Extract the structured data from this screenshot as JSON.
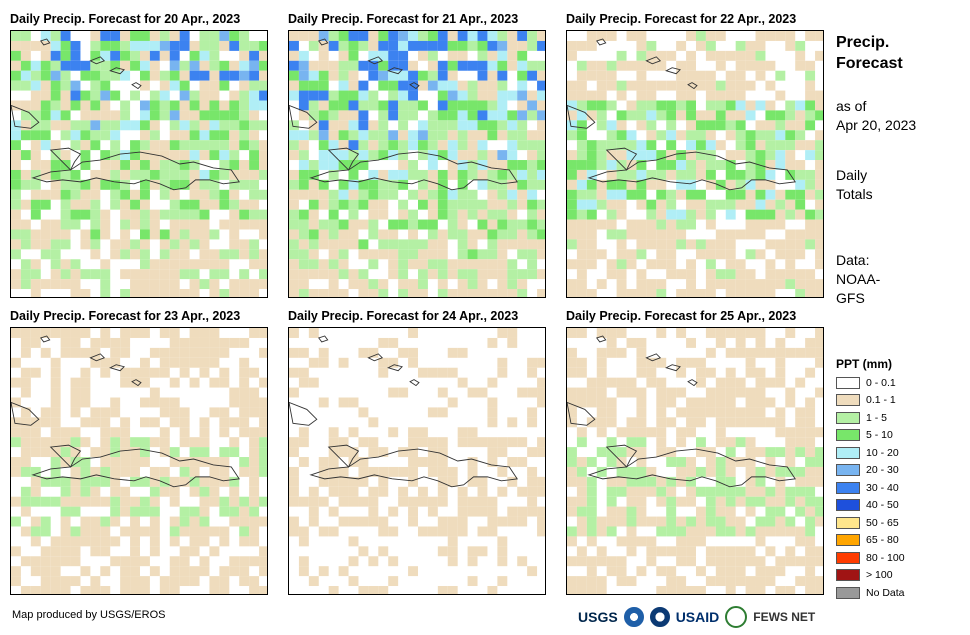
{
  "panels": [
    {
      "title": "Daily Precip. Forecast for 20 Apr., 2023",
      "seed": 20
    },
    {
      "title": "Daily Precip. Forecast for 21 Apr., 2023",
      "seed": 21
    },
    {
      "title": "Daily Precip. Forecast for 22 Apr., 2023",
      "seed": 22
    },
    {
      "title": "Daily Precip. Forecast for 23 Apr., 2023",
      "seed": 23
    },
    {
      "title": "Daily Precip. Forecast for 24 Apr., 2023",
      "seed": 24
    },
    {
      "title": "Daily Precip. Forecast for 25 Apr., 2023",
      "seed": 25
    }
  ],
  "sidebar": {
    "title_line1": "Precip.",
    "title_line2": "Forecast",
    "asof_line1": "as of",
    "asof_line2": "Apr 20, 2023",
    "daily_line1": "Daily",
    "daily_line2": "Totals",
    "data_line1": "Data:",
    "data_line2": "NOAA-",
    "data_line3": "GFS"
  },
  "legend": {
    "title": "PPT (mm)",
    "items": [
      {
        "label": "0 - 0.1",
        "color": "#ffffff"
      },
      {
        "label": "0.1 - 1",
        "color": "#efdcbd"
      },
      {
        "label": "1 - 5",
        "color": "#b4f0a4"
      },
      {
        "label": "5 - 10",
        "color": "#78e66a"
      },
      {
        "label": "10 - 20",
        "color": "#b0eef6"
      },
      {
        "label": "20 - 30",
        "color": "#78b4f0"
      },
      {
        "label": "30 - 40",
        "color": "#3c82f0"
      },
      {
        "label": "40 - 50",
        "color": "#1e50dc"
      },
      {
        "label": "50 - 65",
        "color": "#ffe68c"
      },
      {
        "label": "65 - 80",
        "color": "#ffa500"
      },
      {
        "label": "80 - 100",
        "color": "#ff3c00"
      },
      {
        "label": "> 100",
        "color": "#a01414"
      },
      {
        "label": "No Data",
        "color": "#999999"
      }
    ]
  },
  "footer": {
    "credit": "Map produced by USGS/EROS",
    "logo_usgs": "USGS",
    "logo_usaid": "USAID",
    "logo_fews": "FEWS NET"
  }
}
